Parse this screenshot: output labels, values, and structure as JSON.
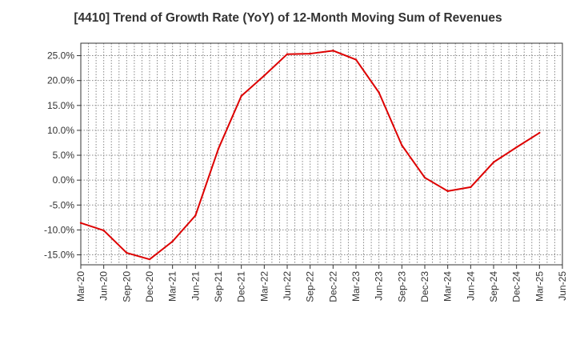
{
  "chart_data": {
    "type": "line",
    "title": "[4410]  Trend of Growth Rate (YoY) of 12-Month Moving Sum of Revenues",
    "xlabel": "",
    "ylabel": "",
    "grid": true,
    "ylim": [
      -17,
      27.5
    ],
    "yticks": [
      -15,
      -10,
      -5,
      0,
      5,
      10,
      15,
      20,
      25
    ],
    "ytick_labels": [
      "-15.0%",
      "-10.0%",
      "-5.0%",
      "0.0%",
      "5.0%",
      "10.0%",
      "15.0%",
      "20.0%",
      "25.0%"
    ],
    "x_labels": [
      "Mar-20",
      "Jun-20",
      "Sep-20",
      "Dec-20",
      "Mar-21",
      "Jun-21",
      "Sep-21",
      "Dec-21",
      "Mar-22",
      "Jun-22",
      "Sep-22",
      "Dec-22",
      "Mar-23",
      "Jun-23",
      "Sep-23",
      "Dec-23",
      "Mar-24",
      "Jun-24",
      "Sep-24",
      "Dec-24",
      "Mar-25",
      "Jun-25"
    ],
    "series": [
      {
        "color": "#dd0000",
        "x": [
          "Mar-20",
          "Jun-20",
          "Sep-20",
          "Dec-20",
          "Mar-21",
          "Jun-21",
          "Sep-21",
          "Dec-21",
          "Mar-22",
          "Jun-22",
          "Sep-22",
          "Dec-22",
          "Mar-23",
          "Jun-23",
          "Sep-23",
          "Dec-23",
          "Mar-24",
          "Jun-24",
          "Sep-24",
          "Dec-24",
          "Mar-25"
        ],
        "values": [
          -8.6,
          -10.1,
          -14.6,
          -15.9,
          -12.3,
          -7.1,
          6.3,
          16.9,
          21.0,
          25.3,
          25.4,
          26.0,
          24.2,
          17.6,
          7.0,
          0.5,
          -2.2,
          -1.4,
          3.6,
          6.6,
          9.5
        ]
      }
    ]
  }
}
